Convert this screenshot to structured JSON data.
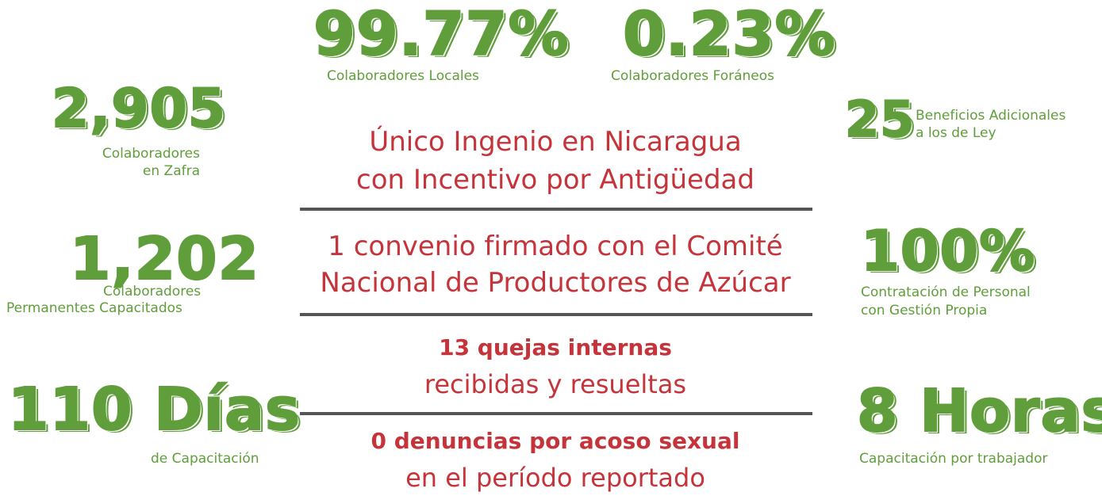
{
  "stats": [
    {
      "figure": "99.77%",
      "caption": [
        "Colaboradores Locales"
      ]
    },
    {
      "figure": "0.23%",
      "caption": [
        "Colaboradores Foráneos"
      ]
    },
    {
      "figure": "2,905",
      "caption": [
        "Colaboradores",
        "en Zafra"
      ]
    },
    {
      "figure": "25",
      "caption": [
        "Beneficios Adicionales",
        "a los de Ley"
      ]
    },
    {
      "figure": "1,202",
      "caption": [
        "Colaboradores",
        "Permanentes Capacitados"
      ]
    },
    {
      "figure": "100%",
      "caption": [
        "Contratación de Personal",
        "con Gestión Propia"
      ]
    },
    {
      "figure": "110 Días",
      "caption": [
        "de Capacitación"
      ]
    },
    {
      "figure": "8 Horas",
      "caption": [
        "Capacitación por trabajador"
      ]
    }
  ],
  "highlights": [
    {
      "lines": [
        "Único Ingenio en Nicaragua",
        "con Incentivo por Antigüedad"
      ]
    },
    {
      "lines": [
        "1 convenio firmado con el Comité",
        "Nacional de Productores de Azúcar"
      ]
    },
    {
      "lines": [
        "13 quejas internas",
        "recibidas y resueltas"
      ]
    },
    {
      "lines": [
        "0 denuncias por acoso sexual",
        "en el período reportado"
      ]
    }
  ]
}
